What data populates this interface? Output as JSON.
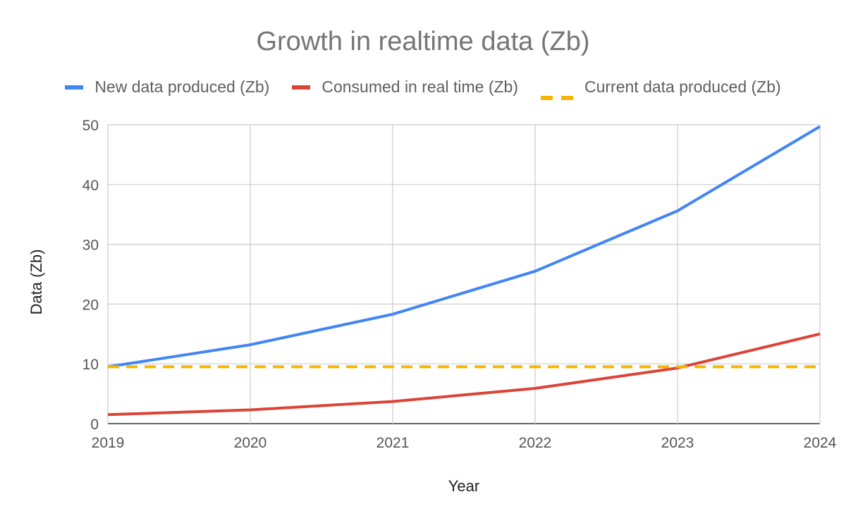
{
  "chart_data": {
    "type": "line",
    "title": "Growth in realtime data (Zb)",
    "xlabel": "Year",
    "ylabel": "Data (Zb)",
    "x": [
      "2019",
      "2020",
      "2021",
      "2022",
      "2023",
      "2024"
    ],
    "ylim": [
      0,
      50
    ],
    "yticks": [
      "0",
      "10",
      "20",
      "30",
      "40",
      "50"
    ],
    "grid": true,
    "legend_position": "top",
    "series": [
      {
        "name": "New data produced (Zb)",
        "color": "#4285F4",
        "style": "solid",
        "values": [
          9.5,
          13.2,
          18.3,
          25.5,
          35.6,
          49.7
        ]
      },
      {
        "name": "Consumed in real time (Zb)",
        "color": "#DB4437",
        "style": "solid",
        "values": [
          1.5,
          2.3,
          3.7,
          5.9,
          9.3,
          15.0
        ]
      },
      {
        "name": "Current data produced (Zb)",
        "color": "#F4B400",
        "style": "dashed",
        "values": [
          9.5,
          9.5,
          9.5,
          9.5,
          9.5,
          9.5
        ]
      }
    ]
  }
}
